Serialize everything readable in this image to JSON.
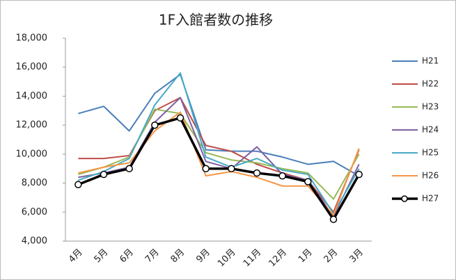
{
  "chart_data": {
    "type": "line",
    "title": "1F入館者数の推移",
    "categories": [
      "4月",
      "5月",
      "6月",
      "7月",
      "8月",
      "9月",
      "10月",
      "11月",
      "12月",
      "1月",
      "2月",
      "3月"
    ],
    "ylim": [
      4000,
      18000
    ],
    "yticks": [
      {
        "value": 4000,
        "label": "4,000"
      },
      {
        "value": 6000,
        "label": "6,000"
      },
      {
        "value": 8000,
        "label": "8,000"
      },
      {
        "value": 10000,
        "label": "10,000"
      },
      {
        "value": 12000,
        "label": "12,000"
      },
      {
        "value": 14000,
        "label": "14,000"
      },
      {
        "value": 16000,
        "label": "16,000"
      },
      {
        "value": 18000,
        "label": "18,000"
      }
    ],
    "grid": false,
    "legend": "right",
    "series": [
      {
        "name": "H21",
        "color": "#4a7ebb",
        "values": [
          12800,
          13300,
          11600,
          14200,
          15500,
          10300,
          10200,
          10200,
          9800,
          9300,
          9500,
          8500
        ]
      },
      {
        "name": "H22",
        "color": "#be4b48",
        "values": [
          9700,
          9700,
          9900,
          13000,
          13900,
          10600,
          10200,
          9300,
          8700,
          8200,
          6000,
          10300
        ]
      },
      {
        "name": "H23",
        "color": "#98b954",
        "values": [
          8600,
          9100,
          9800,
          13100,
          12800,
          10100,
          9600,
          9400,
          9000,
          8700,
          6900,
          10000
        ]
      },
      {
        "name": "H24",
        "color": "#7d60a0",
        "values": [
          8400,
          8700,
          9100,
          12200,
          13900,
          9500,
          9000,
          10500,
          8600,
          8200,
          5700,
          9300
        ]
      },
      {
        "name": "H25",
        "color": "#46aac5",
        "values": [
          8200,
          8800,
          9700,
          13400,
          15600,
          9800,
          9100,
          9700,
          8900,
          8600,
          5900,
          9000
        ]
      },
      {
        "name": "H26",
        "color": "#f79646",
        "values": [
          8700,
          9100,
          9400,
          11600,
          12900,
          8500,
          8800,
          8400,
          7800,
          7800,
          5800,
          10400
        ]
      },
      {
        "name": "H27",
        "color": "#000000",
        "marker": true,
        "values": [
          7900,
          8600,
          9000,
          12000,
          12500,
          9000,
          9000,
          8700,
          8500,
          8100,
          5500,
          8600
        ]
      }
    ]
  }
}
